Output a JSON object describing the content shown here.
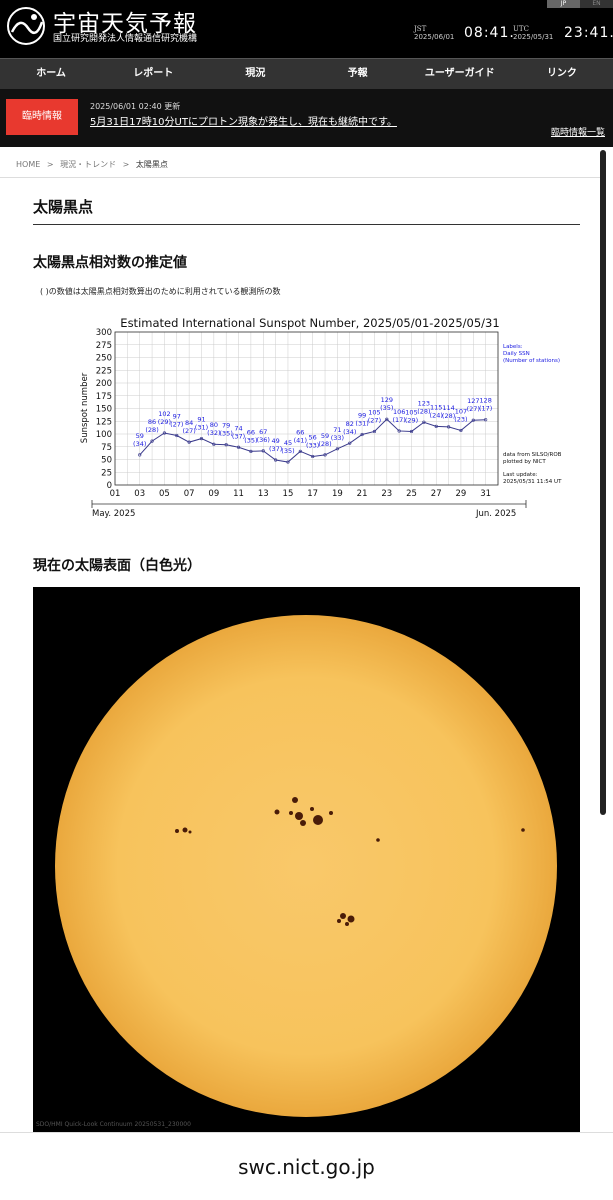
{
  "header": {
    "title": "宇宙天気予報",
    "subtitle": "国立研究開発法人情報通信研究機構",
    "lang_ja": "JP",
    "lang_en": "EN",
    "jst_label": "JST",
    "jst_date": "2025/06/01",
    "jst_time": "08:41.",
    "utc_label": "UTC",
    "utc_date": "2025/05/31",
    "utc_time": "23:41."
  },
  "nav": [
    "ホーム",
    "レポート",
    "現況",
    "予報",
    "ユーザーガイド",
    "リンク"
  ],
  "alert": {
    "badge": "臨時情報",
    "updated": "2025/06/01 02:40 更新",
    "message": "5月31日17時10分UTにプロトン現象が発生し、現在も継続中です。",
    "list_link": "臨時情報一覧"
  },
  "breadcrumb": [
    "HOME",
    "現況・トレンド",
    "太陽黒点"
  ],
  "breadcrumb_sep": ">",
  "page_title": "太陽黒点",
  "section_ssn": {
    "heading": "太陽黒点相対数の推定値",
    "note": "( )の数値は太陽黒点相対数算出のために利用されている観測所の数"
  },
  "chart_data": {
    "type": "line",
    "title": "Estimated International Sunspot Number, 2025/05/01-2025/05/31",
    "ylabel": "Sunspot number",
    "xlabel_left": "May. 2025",
    "xlabel_right": "Jun. 2025",
    "ylim": [
      0,
      300
    ],
    "xlim": [
      1,
      32
    ],
    "yticks": [
      0,
      25,
      50,
      75,
      100,
      125,
      150,
      175,
      200,
      225,
      250,
      275,
      300
    ],
    "xticks": [
      "01",
      "03",
      "05",
      "07",
      "09",
      "11",
      "13",
      "15",
      "17",
      "19",
      "21",
      "23",
      "25",
      "27",
      "29",
      "31"
    ],
    "grid": true,
    "x": [
      3,
      4,
      5,
      6,
      7,
      8,
      9,
      10,
      11,
      12,
      13,
      14,
      15,
      16,
      17,
      18,
      19,
      20,
      21,
      22,
      23,
      24,
      25,
      26,
      27,
      28,
      29,
      30,
      31
    ],
    "values": [
      59,
      86,
      102,
      97,
      84,
      91,
      80,
      79,
      74,
      66,
      67,
      49,
      45,
      66,
      56,
      59,
      71,
      82,
      99,
      105,
      129,
      106,
      105,
      123,
      115,
      114,
      107,
      127,
      128
    ],
    "stations": [
      34,
      28,
      29,
      27,
      27,
      31,
      32,
      35,
      37,
      35,
      36,
      37,
      35,
      41,
      33,
      28,
      33,
      34,
      31,
      27,
      35,
      17,
      29,
      28,
      24,
      28,
      23,
      27,
      17
    ],
    "side_labels": [
      "Labels:",
      "Daily SSN",
      "(Number of stations)"
    ],
    "data_source": [
      "data from SILSO/ROB",
      "plotted by NICT"
    ],
    "last_update": [
      "Last update:",
      "2025/05/31 11:54 UT"
    ],
    "line_color": "#3a3a8c",
    "label_color": "#1a1ae0"
  },
  "section_sun": {
    "heading": "現在の太陽表面（白色光）",
    "caption": "SDO/HMI  Quick-Look  Continuum  20250531_230000",
    "disk_color": "#f7c35c"
  },
  "url": "swc.nict.go.jp"
}
